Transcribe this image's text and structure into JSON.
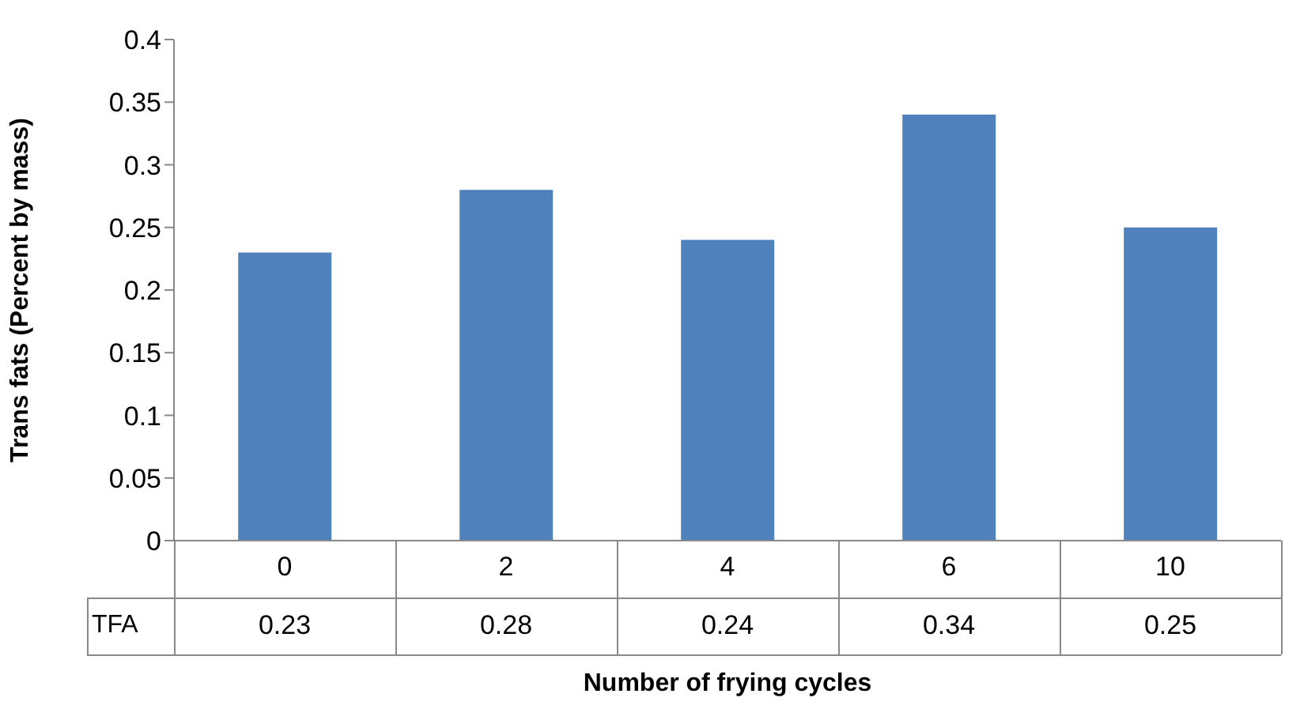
{
  "chart_data": {
    "type": "bar",
    "xlabel": "Number of frying cycles",
    "ylabel": "Trans fats (Percent by mass)",
    "categories": [
      "0",
      "2",
      "4",
      "6",
      "10"
    ],
    "series": [
      {
        "name": "TFA",
        "color": "#4f81bd",
        "values": [
          0.23,
          0.28,
          0.24,
          0.34,
          0.25
        ]
      }
    ],
    "ylim": [
      0,
      0.4
    ],
    "yticks": [
      0,
      0.05,
      0.1,
      0.15,
      0.2,
      0.25,
      0.3,
      0.35,
      0.4
    ],
    "grid": false,
    "data_labels": true
  }
}
